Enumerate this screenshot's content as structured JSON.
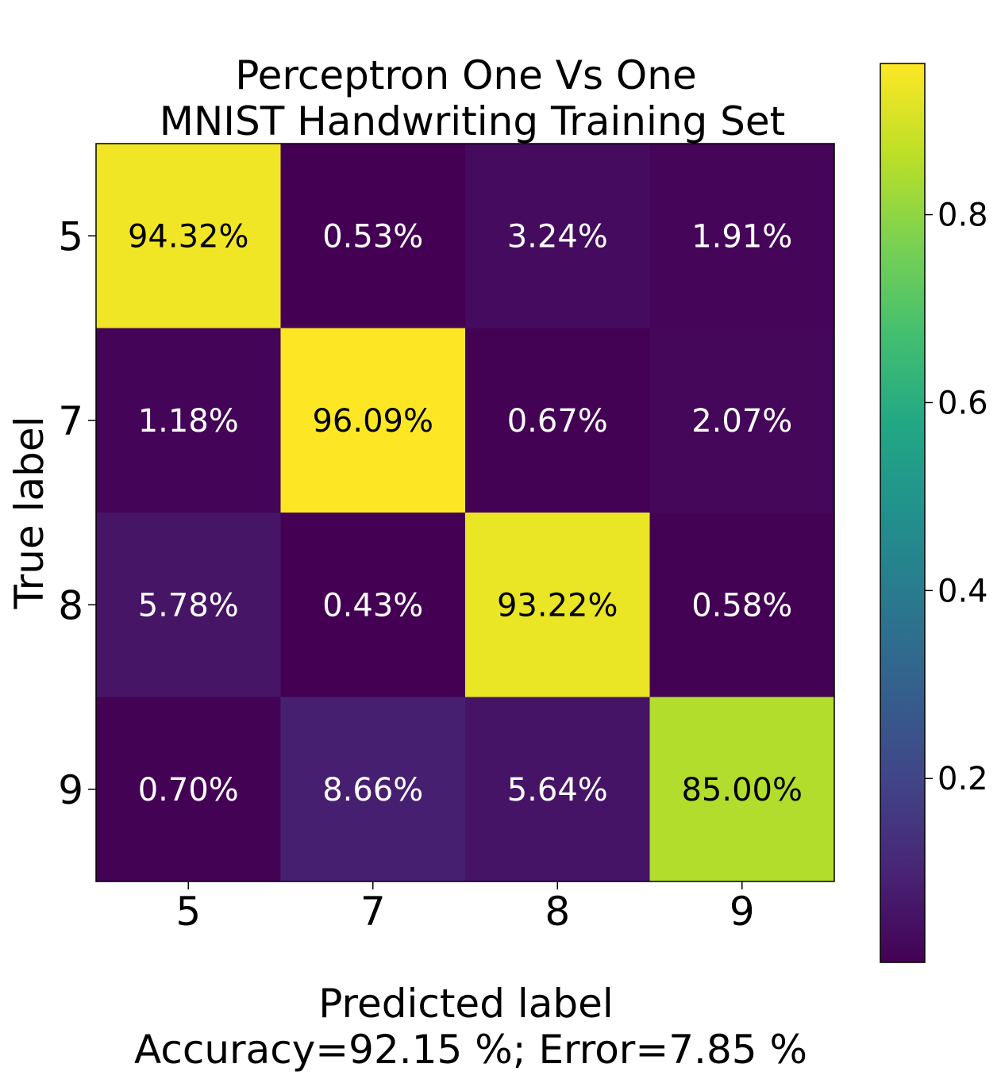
{
  "chart_data": {
    "type": "heatmap",
    "title_lines": [
      "Perceptron One Vs One",
      "MNIST Handwriting Training Set"
    ],
    "xlabel": "Predicted label",
    "xlabel_note": "Accuracy=92.15 %; Error=7.85 %",
    "ylabel": "True label",
    "x_categories": [
      "5",
      "7",
      "8",
      "9"
    ],
    "y_categories": [
      "5",
      "7",
      "8",
      "9"
    ],
    "values": [
      [
        0.9432,
        0.0053,
        0.0324,
        0.0191
      ],
      [
        0.0118,
        0.9609,
        0.0067,
        0.0207
      ],
      [
        0.0578,
        0.0043,
        0.9322,
        0.0058
      ],
      [
        0.007,
        0.0866,
        0.0564,
        0.85
      ]
    ],
    "cell_labels": [
      [
        "94.32%",
        "0.53%",
        "3.24%",
        "1.91%"
      ],
      [
        "1.18%",
        "96.09%",
        "0.67%",
        "2.07%"
      ],
      [
        "5.78%",
        "0.43%",
        "93.22%",
        "0.58%"
      ],
      [
        "0.70%",
        "8.66%",
        "5.64%",
        "85.00%"
      ]
    ],
    "colormap": "viridis",
    "colorbar": {
      "range": [
        0.0043,
        0.9609
      ],
      "ticks": [
        0.2,
        0.4,
        0.6,
        0.8
      ],
      "tick_labels": [
        "0.2",
        "0.4",
        "0.6",
        "0.8"
      ]
    },
    "grid": false
  }
}
